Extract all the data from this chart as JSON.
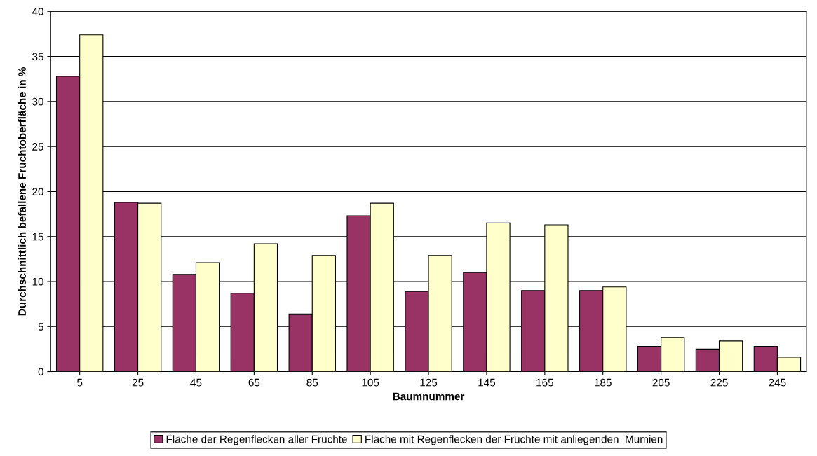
{
  "chart_data": {
    "type": "bar",
    "xlabel": "Baumnummer",
    "ylabel": "Durchschnittlich befallene Fruchtoberfläche in %",
    "categories": [
      "5",
      "25",
      "45",
      "65",
      "85",
      "105",
      "125",
      "145",
      "165",
      "185",
      "205",
      "225",
      "245"
    ],
    "series": [
      {
        "name": "Fläche der Regenflecken aller Früchte",
        "color": "#993366",
        "values": [
          32.8,
          18.8,
          10.8,
          8.7,
          6.4,
          17.3,
          8.9,
          11.0,
          9.0,
          9.0,
          2.8,
          2.5,
          2.8
        ]
      },
      {
        "name": "Fläche mit Regenflecken der Früchte mit anliegenden  Mumien",
        "color": "#ffffcc",
        "values": [
          37.4,
          18.7,
          12.1,
          14.2,
          12.9,
          18.7,
          12.9,
          16.5,
          16.3,
          9.4,
          3.8,
          3.4,
          1.6
        ]
      }
    ],
    "ylim": [
      0,
      40
    ],
    "yticks": [
      0,
      5,
      10,
      15,
      20,
      25,
      30,
      35,
      40
    ],
    "grid": "y",
    "legend": "bottom"
  }
}
